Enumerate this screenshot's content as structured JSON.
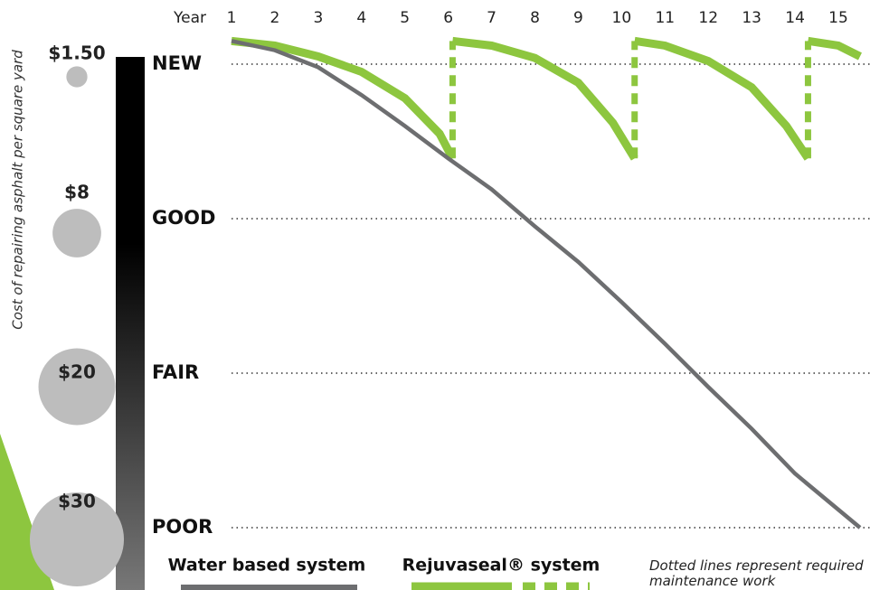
{
  "chart_data": {
    "type": "line",
    "x_label": "Year",
    "y_label": "Cost of repairing asphalt per square yard",
    "xlim": [
      1,
      15
    ],
    "xticks": [
      1,
      2,
      3,
      4,
      5,
      6,
      7,
      8,
      9,
      10,
      11,
      12,
      13,
      14,
      15
    ],
    "ylim": [
      0,
      3
    ],
    "yticks": [
      {
        "value": 3,
        "label": "NEW"
      },
      {
        "value": 2,
        "label": "GOOD"
      },
      {
        "value": 1,
        "label": "FAIR"
      },
      {
        "value": 0,
        "label": "POOR"
      }
    ],
    "grid": true,
    "costs": {
      "values": [
        1.5,
        8,
        20,
        30
      ],
      "value_labels": [
        "$1.50",
        "$8",
        "$20",
        "$30"
      ],
      "color": "#bdbdbd"
    },
    "series": [
      {
        "name": "Water based system",
        "color": "#6d6e70",
        "x": [
          1,
          2,
          3,
          4,
          5,
          6,
          7,
          8,
          9,
          10,
          11,
          12,
          13,
          14,
          15.5
        ],
        "values": [
          3.15,
          3.09,
          2.98,
          2.8,
          2.6,
          2.39,
          2.19,
          1.95,
          1.72,
          1.46,
          1.19,
          0.91,
          0.64,
          0.35,
          0
        ]
      },
      {
        "name": "Rejuvaseal® system",
        "color": "#8dc63f",
        "x": [
          1,
          2,
          3,
          4,
          5,
          5.8,
          6.1,
          null,
          6.1,
          7,
          8,
          9,
          9.8,
          10.3,
          null,
          10.3,
          11,
          12,
          13,
          13.8,
          14.3,
          null,
          14.3,
          15,
          15.5
        ],
        "values": [
          3.15,
          3.12,
          3.05,
          2.95,
          2.78,
          2.55,
          2.39,
          null,
          3.15,
          3.12,
          3.04,
          2.88,
          2.62,
          2.39,
          null,
          3.15,
          3.12,
          3.02,
          2.85,
          2.6,
          2.39,
          null,
          3.15,
          3.12,
          3.05
        ]
      }
    ],
    "maintenance": {
      "color": "#8dc63f",
      "x": [
        6.1,
        6.1,
        null,
        10.3,
        10.3,
        null,
        14.3,
        14.3
      ],
      "values": [
        2.39,
        3.15,
        null,
        2.39,
        3.15,
        null,
        2.39,
        3.15
      ]
    },
    "note": "Dotted lines represent required maintenance work"
  }
}
